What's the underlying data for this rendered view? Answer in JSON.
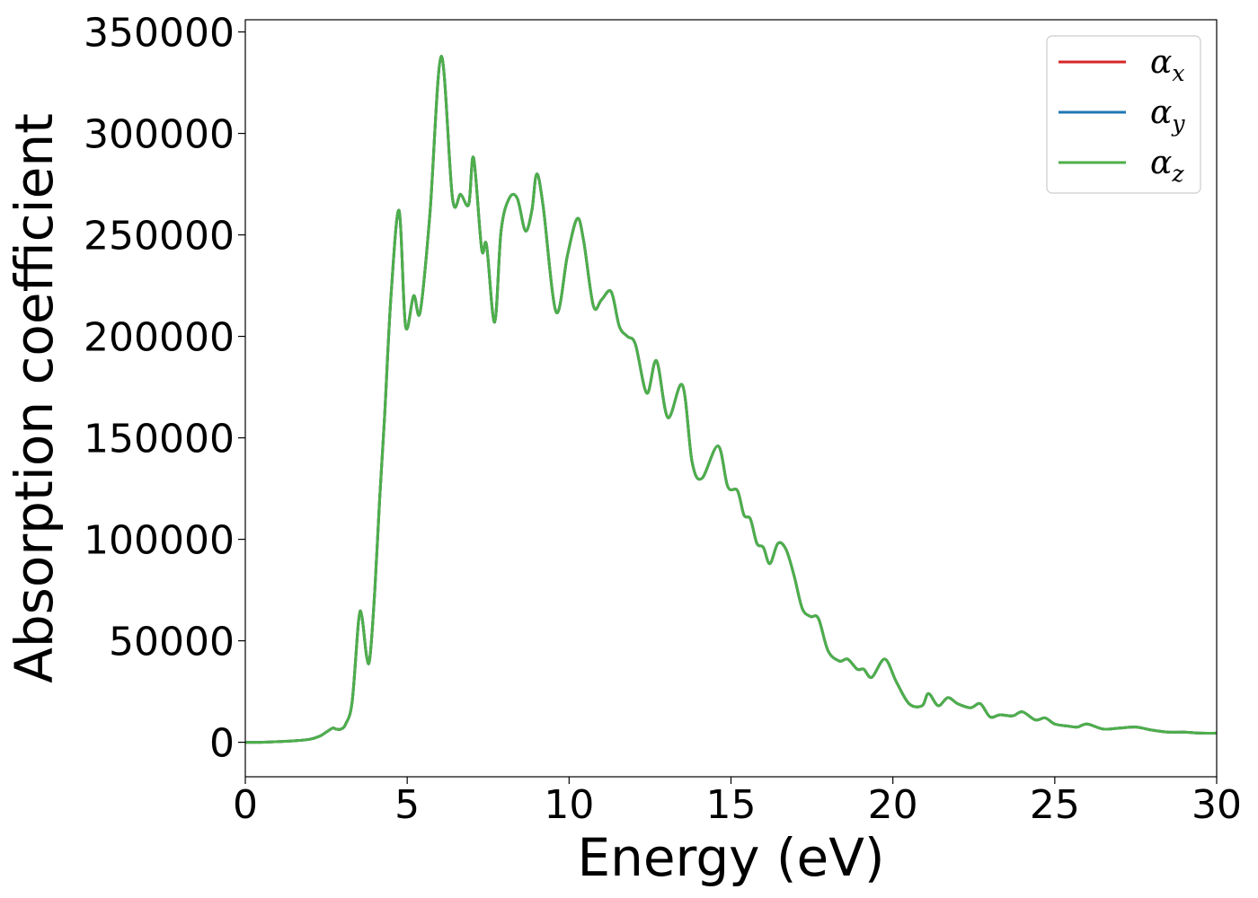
{
  "chart_data": {
    "type": "line",
    "title": "",
    "xlabel": "Energy (eV)",
    "ylabel": "Absorption coefficient",
    "xlim": [
      0,
      30
    ],
    "ylim": [
      -17000,
      356000
    ],
    "xticks": [
      0,
      5,
      10,
      15,
      20,
      25,
      30
    ],
    "yticks": [
      0,
      50000,
      100000,
      150000,
      200000,
      250000,
      300000,
      350000
    ],
    "grid": false,
    "legend": {
      "placement": "top-right"
    },
    "series": [
      {
        "name": "α",
        "subscript": "x",
        "color": "#d62728"
      },
      {
        "name": "α",
        "subscript": "y",
        "color": "#1f77b4"
      },
      {
        "name": "α",
        "subscript": "z",
        "color": "#4daf4a"
      }
    ],
    "shared_curve_note_hidden": "",
    "x": [
      0,
      0.5,
      1,
      1.5,
      2,
      2.3,
      2.5,
      2.7,
      2.8,
      2.95,
      3.1,
      3.3,
      3.5,
      3.6,
      3.75,
      3.85,
      4.0,
      4.15,
      4.3,
      4.5,
      4.75,
      4.95,
      5.2,
      5.4,
      5.7,
      6.05,
      6.4,
      6.65,
      6.9,
      7.05,
      7.3,
      7.45,
      7.7,
      7.9,
      8.15,
      8.4,
      8.65,
      8.85,
      9.0,
      9.2,
      9.6,
      9.95,
      10.25,
      10.45,
      10.75,
      11.0,
      11.3,
      11.55,
      11.8,
      12.05,
      12.4,
      12.7,
      13.05,
      13.5,
      13.8,
      14.1,
      14.6,
      14.9,
      15.2,
      15.4,
      15.6,
      15.8,
      16.0,
      16.2,
      16.45,
      16.7,
      16.95,
      17.2,
      17.45,
      17.7,
      18.0,
      18.35,
      18.6,
      18.9,
      19.1,
      19.35,
      19.75,
      20.1,
      20.5,
      20.9,
      21.1,
      21.4,
      21.7,
      22.0,
      22.4,
      22.7,
      23.0,
      23.3,
      23.7,
      24.0,
      24.4,
      24.7,
      25.0,
      25.4,
      25.7,
      26.0,
      26.5,
      27.0,
      27.5,
      28.0,
      28.5,
      29.0,
      29.5,
      30.0
    ],
    "y": [
      0,
      0,
      300,
      700,
      1500,
      3000,
      5000,
      7000,
      6500,
      6500,
      9000,
      20000,
      60000,
      62000,
      42000,
      42000,
      75000,
      120000,
      160000,
      220000,
      262000,
      205000,
      220000,
      212000,
      260000,
      338000,
      268000,
      270000,
      265000,
      288000,
      243000,
      245000,
      207000,
      252000,
      268000,
      268000,
      252000,
      262000,
      280000,
      264000,
      212000,
      240000,
      258000,
      247000,
      215000,
      218000,
      222000,
      205000,
      200000,
      196000,
      172000,
      188000,
      160000,
      176000,
      138000,
      130000,
      146000,
      126000,
      124000,
      112000,
      110000,
      98000,
      96000,
      88000,
      98000,
      95000,
      82000,
      66000,
      62000,
      61000,
      45000,
      40000,
      41000,
      36000,
      36000,
      32000,
      41000,
      30000,
      19000,
      18000,
      24000,
      18000,
      22000,
      19000,
      17000,
      19000,
      12500,
      13500,
      13000,
      15000,
      11000,
      12000,
      9000,
      8000,
      7500,
      9000,
      6500,
      7000,
      7500,
      6000,
      5000,
      5000,
      4500,
      4500
    ]
  }
}
